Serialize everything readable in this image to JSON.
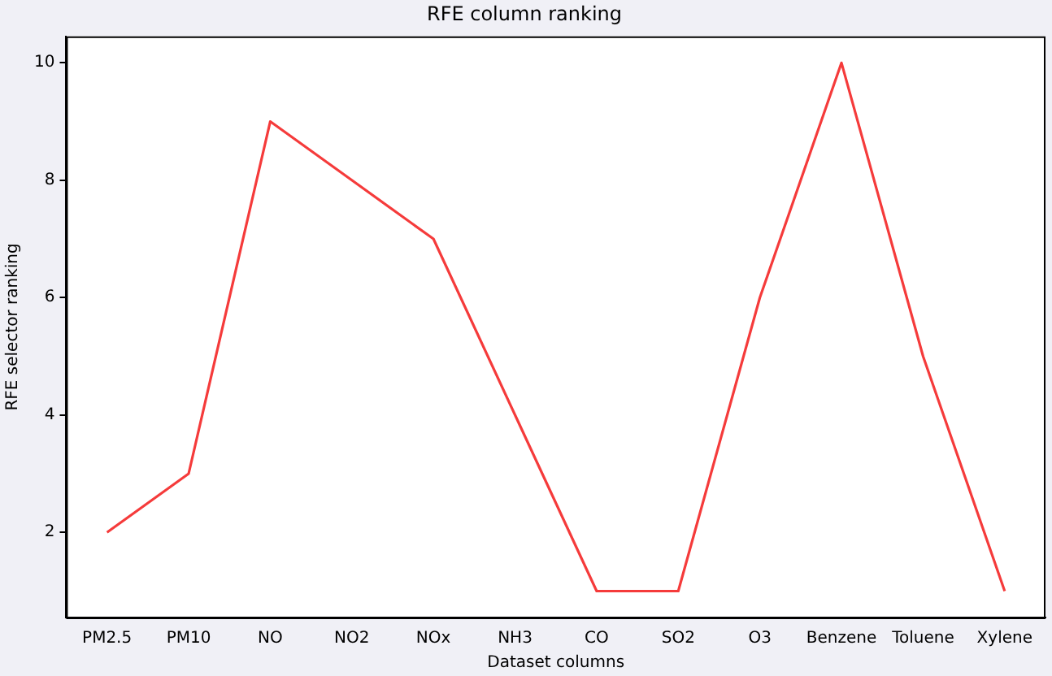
{
  "chart_data": {
    "type": "line",
    "title": "RFE column ranking",
    "xlabel": "Dataset columns",
    "ylabel": "RFE selector ranking",
    "categories": [
      "PM2.5",
      "PM10",
      "NO",
      "NO2",
      "NOx",
      "NH3",
      "CO",
      "SO2",
      "O3",
      "Benzene",
      "Toluene",
      "Xylene"
    ],
    "series": [
      {
        "color": "#f53b3b",
        "values": [
          2,
          3,
          9,
          8,
          7,
          4,
          1,
          1,
          6,
          10,
          5,
          1
        ]
      }
    ],
    "ylim": [
      0.55,
      10.45
    ],
    "yticks": [
      2,
      4,
      6,
      8,
      10
    ],
    "grid": false,
    "legend": false,
    "marker": "none",
    "line_style": "solid"
  }
}
